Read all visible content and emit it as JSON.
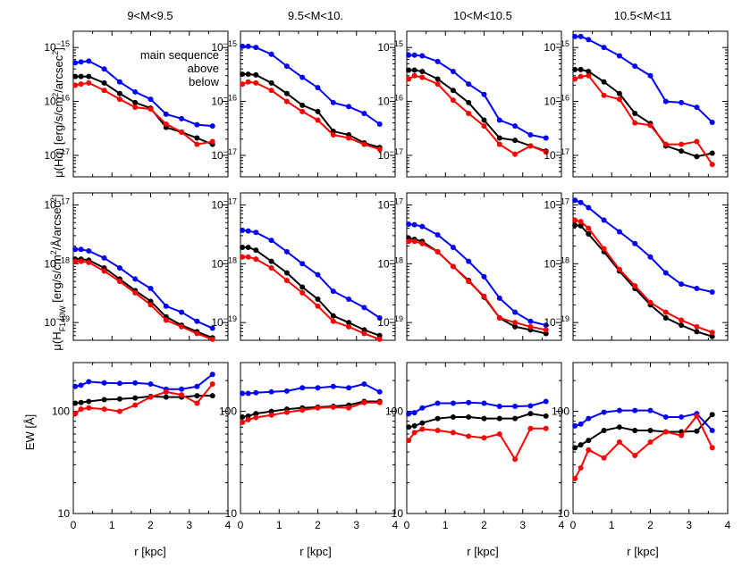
{
  "figure": {
    "mass_labels": [
      "9<M<9.5",
      "9.5<M<10.",
      "10<M<10.5",
      "10.5<M<11"
    ],
    "xlabel": "r [kpc]",
    "legend": [
      {
        "label": "main sequence",
        "color": "#000000"
      },
      {
        "label": "above",
        "color": "#0000ff"
      },
      {
        "label": "below",
        "color": "#ff0000"
      }
    ]
  },
  "chart_data": [
    {
      "type": "line",
      "panel": "row1",
      "ylabel_parts": [
        "μ(Hα) [erg/s/cm",
        "2",
        "/arcsec",
        "2",
        "]"
      ],
      "yscale": "log",
      "ylim": [
        4e-18,
        2e-15
      ],
      "yticks": [
        1e-17,
        1e-16,
        1e-15
      ],
      "ytick_labels": [
        {
          "base": "10",
          "exp": "−17"
        },
        {
          "base": "10",
          "exp": "−16"
        },
        {
          "base": "10",
          "exp": "−15"
        }
      ],
      "xlim": [
        0,
        4
      ],
      "xticks": [
        0,
        1,
        2,
        3,
        4
      ],
      "x": [
        0.05,
        0.2,
        0.4,
        0.8,
        1.2,
        1.6,
        2.0,
        2.4,
        2.8,
        3.2,
        3.6
      ],
      "columns": [
        {
          "title": "9<M<9.5",
          "series": [
            {
              "name": "main sequence",
              "color": "#000000",
              "values": [
                2.9e-16,
                2.9e-16,
                2.9e-16,
                2.2e-16,
                1.4e-16,
                9.5e-17,
                7.5e-17,
                3.3e-17,
                2.7e-17,
                2.1e-17,
                1.6e-17
              ]
            },
            {
              "name": "above",
              "color": "#0000ff",
              "values": [
                5.2e-16,
                5.4e-16,
                5.6e-16,
                4e-16,
                2.3e-16,
                1.5e-16,
                1.1e-16,
                5.8e-17,
                4.8e-17,
                3.7e-17,
                3.5e-17
              ]
            },
            {
              "name": "below",
              "color": "#ff0000",
              "values": [
                2e-16,
                2.1e-16,
                2.2e-16,
                1.6e-16,
                1.1e-16,
                7.8e-17,
                7.2e-17,
                3.8e-17,
                2.7e-17,
                1.6e-17,
                1.8e-17
              ]
            }
          ]
        },
        {
          "title": "9.5<M<10.",
          "series": [
            {
              "name": "main sequence",
              "color": "#000000",
              "values": [
                3.2e-16,
                3.2e-16,
                3.1e-16,
                2.2e-16,
                1.4e-16,
                8.5e-17,
                6.5e-17,
                2.8e-17,
                2.4e-17,
                1.7e-17,
                1.4e-17
              ]
            },
            {
              "name": "above",
              "color": "#0000ff",
              "values": [
                1.05e-15,
                1.05e-15,
                1e-15,
                7.5e-16,
                4.5e-16,
                2.8e-16,
                1.8e-16,
                9.5e-17,
                8e-17,
                6e-17,
                3.8e-17
              ]
            },
            {
              "name": "below",
              "color": "#ff0000",
              "values": [
                2.1e-16,
                2.3e-16,
                2.2e-16,
                1.6e-16,
                1e-16,
                6.5e-17,
                4.5e-17,
                2.4e-17,
                2.1e-17,
                1.6e-17,
                1.3e-17
              ]
            }
          ]
        },
        {
          "title": "10<M<10.5",
          "series": [
            {
              "name": "main sequence",
              "color": "#000000",
              "values": [
                3.8e-16,
                3.8e-16,
                3.6e-16,
                2.6e-16,
                1.6e-16,
                9.5e-17,
                4.5e-17,
                2.1e-17,
                1.9e-17,
                1.5e-17,
                1.2e-17
              ]
            },
            {
              "name": "above",
              "color": "#0000ff",
              "values": [
                7.2e-16,
                7.2e-16,
                7e-16,
                5.5e-16,
                3.6e-16,
                2.1e-16,
                1.35e-16,
                4.5e-17,
                3.5e-17,
                2.4e-17,
                2.1e-17
              ]
            },
            {
              "name": "below",
              "color": "#ff0000",
              "values": [
                2.6e-16,
                3e-16,
                2.8e-16,
                2.1e-16,
                1.05e-16,
                6e-17,
                3.5e-17,
                1.6e-17,
                1.05e-17,
                1.5e-17,
                1.15e-17
              ]
            }
          ]
        },
        {
          "title": "10.5<M<11",
          "series": [
            {
              "name": "main sequence",
              "color": "#000000",
              "values": [
                3.9e-16,
                3.9e-16,
                3.6e-16,
                2.3e-16,
                1.4e-16,
                6e-17,
                3.9e-17,
                1.5e-17,
                1.2e-17,
                9.5e-18,
                1.1e-17
              ]
            },
            {
              "name": "above",
              "color": "#0000ff",
              "values": [
                1.6e-15,
                1.6e-15,
                1.4e-15,
                1e-15,
                7e-16,
                4.5e-16,
                3e-16,
                1e-16,
                9.5e-17,
                7.8e-17,
                4.1e-17
              ]
            },
            {
              "name": "below",
              "color": "#ff0000",
              "values": [
                2.6e-16,
                2.9e-16,
                3e-16,
                1.3e-16,
                1.1e-16,
                4e-17,
                3.6e-17,
                1.6e-17,
                1.6e-17,
                1.8e-17,
                6.8e-18
              ]
            }
          ]
        }
      ]
    },
    {
      "type": "line",
      "panel": "row2",
      "ylabel_parts": [
        "μ(H",
        "F140W",
        " [erg/s/cm",
        "2",
        "/Å/arcsec",
        "2",
        "]"
      ],
      "yscale": "log",
      "ylim": [
        5e-20,
        1.6e-17
      ],
      "yticks": [
        1e-19,
        1e-18,
        1e-17
      ],
      "ytick_labels": [
        {
          "base": "10",
          "exp": "−19"
        },
        {
          "base": "10",
          "exp": "−18"
        },
        {
          "base": "10",
          "exp": "−17"
        }
      ],
      "xlim": [
        0,
        4
      ],
      "xticks": [
        0,
        1,
        2,
        3,
        4
      ],
      "x": [
        0.05,
        0.2,
        0.4,
        0.8,
        1.2,
        1.6,
        2.0,
        2.4,
        2.8,
        3.2,
        3.6
      ],
      "columns": [
        {
          "title": "9<M<9.5",
          "series": [
            {
              "name": "main sequence",
              "color": "#000000",
              "values": [
                1.2e-18,
                1.2e-18,
                1.15e-18,
                8.5e-19,
                5.5e-19,
                3.5e-19,
                2.3e-19,
                1.25e-19,
                9e-20,
                7e-20,
                5.5e-20
              ]
            },
            {
              "name": "above",
              "color": "#0000ff",
              "values": [
                1.75e-18,
                1.75e-18,
                1.65e-18,
                1.25e-18,
                8.5e-19,
                5.5e-19,
                3.8e-19,
                1.9e-19,
                1.5e-19,
                1.05e-19,
                8e-20
              ]
            },
            {
              "name": "below",
              "color": "#ff0000",
              "values": [
                1.1e-18,
                1.1e-18,
                1.05e-18,
                7.5e-19,
                5e-19,
                3.2e-19,
                2e-19,
                1.1e-19,
                8.5e-20,
                6.5e-20,
                5.2e-20
              ]
            }
          ]
        },
        {
          "title": "9.5<M<10.",
          "series": [
            {
              "name": "main sequence",
              "color": "#000000",
              "values": [
                1.9e-18,
                1.9e-18,
                1.7e-18,
                1.1e-18,
                7e-19,
                4e-19,
                2.5e-19,
                1.3e-19,
                1e-19,
                7.5e-20,
                6e-20
              ]
            },
            {
              "name": "above",
              "color": "#0000ff",
              "values": [
                3.7e-18,
                3.6e-18,
                3.4e-18,
                2.5e-18,
                1.6e-18,
                1e-18,
                6.5e-19,
                3.4e-19,
                2.5e-19,
                1.8e-19,
                1.2e-19
              ]
            },
            {
              "name": "below",
              "color": "#ff0000",
              "values": [
                1.3e-18,
                1.3e-18,
                1.2e-18,
                8.5e-19,
                5.2e-19,
                3.2e-19,
                1.9e-19,
                1.05e-19,
                8.5e-20,
                6.5e-20,
                5.2e-20
              ]
            }
          ]
        },
        {
          "title": "10<M<10.5",
          "series": [
            {
              "name": "main sequence",
              "color": "#000000",
              "values": [
                2.7e-18,
                2.6e-18,
                2.4e-18,
                1.6e-18,
                9e-19,
                5.2e-19,
                2.7e-19,
                1.2e-19,
                8.5e-20,
                7.5e-20,
                6.5e-20
              ]
            },
            {
              "name": "above",
              "color": "#0000ff",
              "values": [
                4.7e-18,
                4.6e-18,
                4.3e-18,
                3.1e-18,
                1.9e-18,
                1.1e-18,
                6e-19,
                2.6e-19,
                1.5e-19,
                1.05e-19,
                9e-20
              ]
            },
            {
              "name": "below",
              "color": "#ff0000",
              "values": [
                2.4e-18,
                2.4e-18,
                2.2e-18,
                1.6e-18,
                9e-19,
                5e-19,
                2.8e-19,
                1.2e-19,
                1e-19,
                8.5e-20,
                7.5e-20
              ]
            }
          ]
        },
        {
          "title": "10.5<M<11",
          "series": [
            {
              "name": "main sequence",
              "color": "#000000",
              "values": [
                4.5e-18,
                4.4e-18,
                3.2e-18,
                1.6e-18,
                7.5e-19,
                3.8e-19,
                2e-19,
                1.2e-19,
                9e-20,
                7e-20,
                5.8e-20
              ]
            },
            {
              "name": "above",
              "color": "#0000ff",
              "values": [
                1.2e-17,
                1.1e-17,
                9e-18,
                5.5e-18,
                3.5e-18,
                2.2e-18,
                1.3e-18,
                7e-19,
                4.5e-19,
                3.8e-19,
                3.3e-19
              ]
            },
            {
              "name": "below",
              "color": "#ff0000",
              "values": [
                5.5e-18,
                5.2e-18,
                4e-18,
                1.8e-18,
                8e-19,
                4.2e-19,
                2.2e-19,
                1.5e-19,
                1.1e-19,
                8.5e-20,
                6.8e-20
              ]
            }
          ]
        }
      ]
    },
    {
      "type": "line",
      "panel": "row3",
      "ylabel_parts": [
        "EW [Å]"
      ],
      "yscale": "log",
      "ylim": [
        10,
        300
      ],
      "yticks": [
        10,
        100
      ],
      "ytick_labels": [
        {
          "base": "10",
          "exp": ""
        },
        {
          "base": "100",
          "exp": ""
        }
      ],
      "xlim": [
        0,
        4
      ],
      "xticks": [
        0,
        1,
        2,
        3,
        4
      ],
      "x": [
        0.05,
        0.2,
        0.4,
        0.8,
        1.2,
        1.6,
        2.0,
        2.4,
        2.8,
        3.2,
        3.6
      ],
      "columns": [
        {
          "title": "9<M<9.5",
          "series": [
            {
              "name": "main sequence",
              "color": "#000000",
              "values": [
                120,
                122,
                125,
                130,
                132,
                135,
                140,
                138,
                138,
                142,
                142
              ]
            },
            {
              "name": "above",
              "color": "#0000ff",
              "values": [
                175,
                180,
                195,
                190,
                188,
                190,
                185,
                165,
                165,
                175,
                230
              ]
            },
            {
              "name": "below",
              "color": "#ff0000",
              "values": [
                95,
                105,
                108,
                105,
                100,
                115,
                138,
                155,
                145,
                120,
                185
              ]
            }
          ]
        },
        {
          "title": "9.5<M<10.",
          "series": [
            {
              "name": "main sequence",
              "color": "#000000",
              "values": [
                88,
                90,
                95,
                100,
                105,
                108,
                110,
                112,
                115,
                125,
                125
              ]
            },
            {
              "name": "above",
              "color": "#0000ff",
              "values": [
                150,
                150,
                152,
                155,
                158,
                170,
                170,
                175,
                170,
                185,
                155
              ]
            },
            {
              "name": "below",
              "color": "#ff0000",
              "values": [
                78,
                83,
                87,
                92,
                98,
                103,
                108,
                110,
                108,
                122,
                122
              ]
            }
          ]
        },
        {
          "title": "10<M<10.5",
          "series": [
            {
              "name": "main sequence",
              "color": "#000000",
              "values": [
                70,
                72,
                77,
                85,
                88,
                88,
                85,
                85,
                85,
                95,
                90
              ]
            },
            {
              "name": "above",
              "color": "#0000ff",
              "values": [
                95,
                97,
                108,
                120,
                120,
                122,
                120,
                112,
                112,
                113,
                125
              ]
            },
            {
              "name": "below",
              "color": "#ff0000",
              "values": [
                52,
                62,
                67,
                65,
                62,
                57,
                55,
                60,
                34,
                68,
                68
              ]
            }
          ]
        },
        {
          "title": "10.5<M<11",
          "series": [
            {
              "name": "main sequence",
              "color": "#000000",
              "values": [
                44,
                47,
                52,
                65,
                70,
                65,
                65,
                63,
                63,
                64,
                93
              ]
            },
            {
              "name": "above",
              "color": "#0000ff",
              "values": [
                72,
                75,
                85,
                98,
                102,
                102,
                102,
                88,
                88,
                95,
                65
              ]
            },
            {
              "name": "below",
              "color": "#ff0000",
              "values": [
                22,
                28,
                42,
                35,
                50,
                37,
                50,
                63,
                58,
                90,
                44
              ]
            }
          ]
        }
      ]
    }
  ]
}
